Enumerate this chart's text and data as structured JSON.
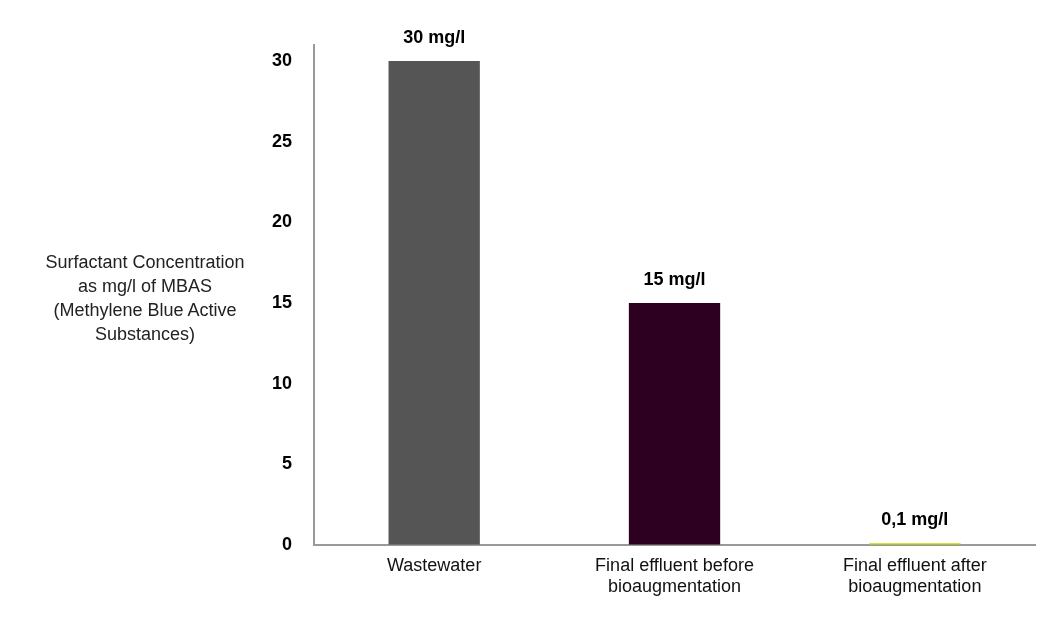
{
  "chart_data": {
    "type": "bar",
    "ylabel": "Surfactant Concentration as mg/l of MBAS (Methylene Blue Active Substances)",
    "categories": [
      "Wastewater",
      "Final effluent before bioaugmentation",
      "Final effluent after bioaugmentation"
    ],
    "values": [
      30,
      15,
      0.1
    ],
    "colors": [
      "#555555",
      "#2d0022",
      "#c8d400"
    ],
    "value_labels": [
      "30 mg/l",
      "15 mg/l",
      "0,1 mg/l"
    ],
    "ylim": [
      0,
      31
    ],
    "yticks": [
      0,
      5,
      10,
      15,
      20,
      25,
      30
    ],
    "grid": false,
    "legend": false
  }
}
